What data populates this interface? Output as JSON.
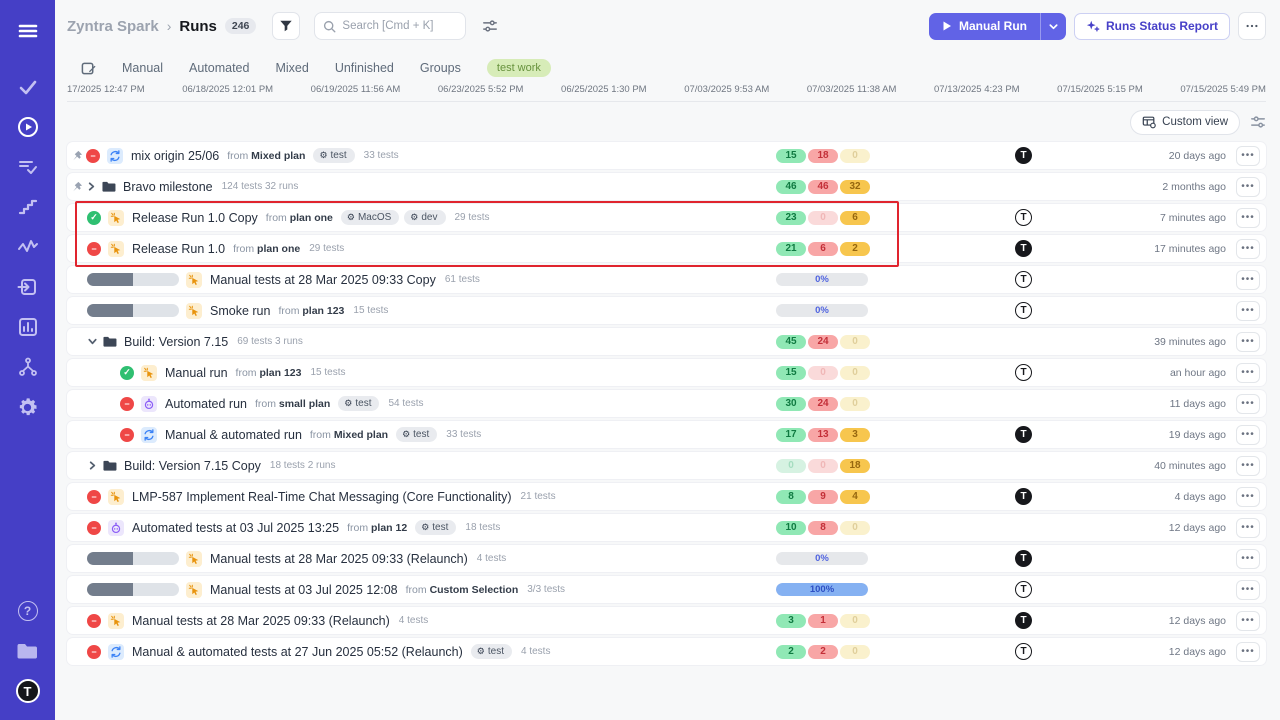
{
  "header": {
    "project": "Zyntra Spark",
    "page": "Runs",
    "count": "246",
    "search_placeholder": "Search [Cmd + K]",
    "manual_run_label": "Manual Run",
    "report_label": "Runs Status Report",
    "more_label": "..."
  },
  "tabs": [
    "Manual",
    "Automated",
    "Mixed",
    "Unfinished",
    "Groups"
  ],
  "tag": "test work",
  "timeline_dates": [
    "17/2025 12:47 PM",
    "06/18/2025 12:01 PM",
    "06/19/2025 11:56 AM",
    "06/23/2025 5:52 PM",
    "06/25/2025 1:30 PM",
    "07/03/2025 9:53 AM",
    "07/03/2025 11:38 AM",
    "07/13/2025 4:23 PM",
    "07/15/2025 5:15 PM",
    "07/15/2025 5:49 PM"
  ],
  "custom_view_label": "Custom view",
  "colors": {
    "sidebar": "#453fc6",
    "accent": "#6163e6",
    "highlight": "#e0242e",
    "passed": "#2fbf71",
    "failed": "#ef4746",
    "pill_green": "#90e8b5",
    "pill_red": "#f8a6a6",
    "pill_yellow": "#f7c64e",
    "tag_green": "#d7ecb8"
  },
  "sidebar": {
    "icons": [
      "menu-icon",
      "check-icon",
      "play-run-icon",
      "list-check-icon",
      "steps-icon",
      "pulse-icon",
      "import-icon",
      "bar-chart-icon",
      "branch-icon",
      "gear-icon"
    ],
    "bottom_icons": [
      "help-icon",
      "projects-folder-icon",
      "logo-avatar"
    ],
    "logo_letter": "T"
  },
  "rows": [
    {
      "name": "mix origin 25/06",
      "pinned": true,
      "chevron": null,
      "folder": false,
      "status": "failed",
      "type": "mixed",
      "from": "Mixed plan",
      "badges": [
        "test"
      ],
      "meta": "33 tests",
      "counters": [
        {
          "v": "15",
          "c": "g",
          "faded": false
        },
        {
          "v": "18",
          "c": "r",
          "faded": false
        },
        {
          "v": "0",
          "c": "y",
          "faded": true
        }
      ],
      "progress": null,
      "avatar": "solid",
      "time": "20 days ago",
      "child": false
    },
    {
      "name": "Bravo milestone",
      "pinned": true,
      "chevron": "right",
      "folder": true,
      "status": null,
      "type": null,
      "from": null,
      "badges": [],
      "meta": "124 tests  32 runs",
      "counters": [
        {
          "v": "46",
          "c": "g",
          "faded": false
        },
        {
          "v": "46",
          "c": "r",
          "faded": false
        },
        {
          "v": "32",
          "c": "y",
          "faded": false
        }
      ],
      "progress": null,
      "avatar": null,
      "time": "2 months ago",
      "child": false
    },
    {
      "name": "Release Run 1.0 Copy",
      "pinned": false,
      "chevron": null,
      "folder": false,
      "status": "passed",
      "type": "manual",
      "from": "plan one",
      "badges": [
        "MacOS",
        "dev"
      ],
      "meta": "29 tests",
      "counters": [
        {
          "v": "23",
          "c": "g",
          "faded": false
        },
        {
          "v": "0",
          "c": "r",
          "faded": true
        },
        {
          "v": "6",
          "c": "y",
          "faded": false
        }
      ],
      "progress": null,
      "avatar": "outline",
      "time": "7 minutes ago",
      "child": false
    },
    {
      "name": "Release Run 1.0",
      "pinned": false,
      "chevron": null,
      "folder": false,
      "status": "failed",
      "type": "manual",
      "from": "plan one",
      "badges": [],
      "meta": "29 tests",
      "counters": [
        {
          "v": "21",
          "c": "g",
          "faded": false
        },
        {
          "v": "6",
          "c": "r",
          "faded": false
        },
        {
          "v": "2",
          "c": "y",
          "faded": false
        }
      ],
      "progress": null,
      "avatar": "solid",
      "time": "17 minutes ago",
      "child": false
    },
    {
      "name": "Manual tests at 28 Mar 2025 09:33 Copy",
      "pinned": false,
      "chevron": null,
      "folder": false,
      "status": "progress",
      "type": "manual",
      "from": null,
      "badges": [],
      "meta": "61 tests",
      "counters": null,
      "progress": {
        "pct": "0%",
        "full": false
      },
      "avatar": "outline",
      "time": "",
      "child": false
    },
    {
      "name": "Smoke run",
      "pinned": false,
      "chevron": null,
      "folder": false,
      "status": "progress",
      "type": "manual",
      "from": "plan 123",
      "badges": [],
      "meta": "15 tests",
      "counters": null,
      "progress": {
        "pct": "0%",
        "full": false
      },
      "avatar": "outline",
      "time": "",
      "child": false
    },
    {
      "name": "Build: Version 7.15",
      "pinned": false,
      "chevron": "down",
      "folder": true,
      "status": null,
      "type": null,
      "from": null,
      "badges": [],
      "meta": "69 tests  3 runs",
      "counters": [
        {
          "v": "45",
          "c": "g",
          "faded": false
        },
        {
          "v": "24",
          "c": "r",
          "faded": false
        },
        {
          "v": "0",
          "c": "y",
          "faded": true
        }
      ],
      "progress": null,
      "avatar": null,
      "time": "39 minutes ago",
      "child": false
    },
    {
      "name": "Manual run",
      "pinned": false,
      "chevron": null,
      "folder": false,
      "status": "passed",
      "type": "manual",
      "from": "plan 123",
      "badges": [],
      "meta": "15 tests",
      "counters": [
        {
          "v": "15",
          "c": "g",
          "faded": false
        },
        {
          "v": "0",
          "c": "r",
          "faded": true
        },
        {
          "v": "0",
          "c": "y",
          "faded": true
        }
      ],
      "progress": null,
      "avatar": "outline",
      "time": "an hour ago",
      "child": true
    },
    {
      "name": "Automated run",
      "pinned": false,
      "chevron": null,
      "folder": false,
      "status": "failed",
      "type": "automated",
      "from": "small plan",
      "badges": [
        "test"
      ],
      "meta": "54 tests",
      "counters": [
        {
          "v": "30",
          "c": "g",
          "faded": false
        },
        {
          "v": "24",
          "c": "r",
          "faded": false
        },
        {
          "v": "0",
          "c": "y",
          "faded": true
        }
      ],
      "progress": null,
      "avatar": null,
      "time": "11 days ago",
      "child": true
    },
    {
      "name": "Manual & automated run",
      "pinned": false,
      "chevron": null,
      "folder": false,
      "status": "failed",
      "type": "mixed",
      "from": "Mixed plan",
      "badges": [
        "test"
      ],
      "meta": "33 tests",
      "counters": [
        {
          "v": "17",
          "c": "g",
          "faded": false
        },
        {
          "v": "13",
          "c": "r",
          "faded": false
        },
        {
          "v": "3",
          "c": "y",
          "faded": false
        }
      ],
      "progress": null,
      "avatar": "solid",
      "time": "19 days ago",
      "child": true
    },
    {
      "name": "Build: Version 7.15 Copy",
      "pinned": false,
      "chevron": "right",
      "folder": true,
      "status": null,
      "type": null,
      "from": null,
      "badges": [],
      "meta": "18 tests  2 runs",
      "counters": [
        {
          "v": "0",
          "c": "g",
          "faded": true
        },
        {
          "v": "0",
          "c": "r",
          "faded": true
        },
        {
          "v": "18",
          "c": "y",
          "faded": false
        }
      ],
      "progress": null,
      "avatar": null,
      "time": "40 minutes ago",
      "child": false
    },
    {
      "name": "LMP-587 Implement Real-Time Chat Messaging (Core Functionality)",
      "pinned": false,
      "chevron": null,
      "folder": false,
      "status": "failed",
      "type": "manual",
      "from": null,
      "badges": [],
      "meta": "21 tests",
      "counters": [
        {
          "v": "8",
          "c": "g",
          "faded": false
        },
        {
          "v": "9",
          "c": "r",
          "faded": false
        },
        {
          "v": "4",
          "c": "y",
          "faded": false
        }
      ],
      "progress": null,
      "avatar": "solid",
      "time": "4 days ago",
      "child": false
    },
    {
      "name": "Automated tests at 03 Jul 2025 13:25",
      "pinned": false,
      "chevron": null,
      "folder": false,
      "status": "failed",
      "type": "automated",
      "from": "plan 12",
      "badges": [
        "test"
      ],
      "meta": "18 tests",
      "counters": [
        {
          "v": "10",
          "c": "g",
          "faded": false
        },
        {
          "v": "8",
          "c": "r",
          "faded": false
        },
        {
          "v": "0",
          "c": "y",
          "faded": true
        }
      ],
      "progress": null,
      "avatar": null,
      "time": "12 days ago",
      "child": false
    },
    {
      "name": "Manual tests at 28 Mar 2025 09:33 (Relaunch)",
      "pinned": false,
      "chevron": null,
      "folder": false,
      "status": "progress",
      "type": "manual",
      "from": null,
      "badges": [],
      "meta": "4 tests",
      "counters": null,
      "progress": {
        "pct": "0%",
        "full": false
      },
      "avatar": "solid",
      "time": "",
      "child": false
    },
    {
      "name": "Manual tests at 03 Jul 2025 12:08",
      "pinned": false,
      "chevron": null,
      "folder": false,
      "status": "progress",
      "type": "manual",
      "from": "Custom Selection",
      "badges": [],
      "meta": "3/3 tests",
      "counters": null,
      "progress": {
        "pct": "100%",
        "full": true
      },
      "avatar": "outline",
      "time": "",
      "child": false
    },
    {
      "name": "Manual tests at 28 Mar 2025 09:33 (Relaunch)",
      "pinned": false,
      "chevron": null,
      "folder": false,
      "status": "failed",
      "type": "manual",
      "from": null,
      "badges": [],
      "meta": "4 tests",
      "counters": [
        {
          "v": "3",
          "c": "g",
          "faded": false
        },
        {
          "v": "1",
          "c": "r",
          "faded": false
        },
        {
          "v": "0",
          "c": "y",
          "faded": true
        }
      ],
      "progress": null,
      "avatar": "solid",
      "time": "12 days ago",
      "child": false
    },
    {
      "name": "Manual & automated tests at 27 Jun 2025 05:52 (Relaunch)",
      "pinned": false,
      "chevron": null,
      "folder": false,
      "status": "failed",
      "type": "mixed",
      "from": null,
      "badges": [
        "test"
      ],
      "meta": "4 tests",
      "counters": [
        {
          "v": "2",
          "c": "g",
          "faded": false
        },
        {
          "v": "2",
          "c": "r",
          "faded": false
        },
        {
          "v": "0",
          "c": "y",
          "faded": true
        }
      ],
      "progress": null,
      "avatar": "outline",
      "time": "12 days ago",
      "child": false
    }
  ]
}
